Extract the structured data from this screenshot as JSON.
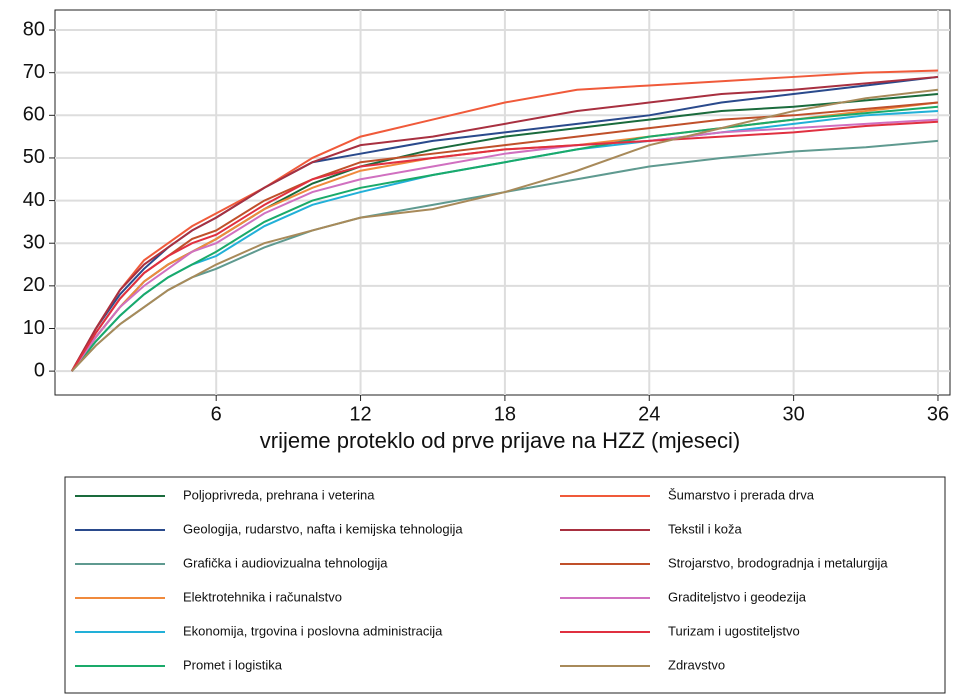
{
  "chart_data": {
    "type": "line",
    "xlabel": "vrijeme proteklo od prve prijave na HZZ (mjeseci)",
    "x": [
      0,
      1,
      2,
      3,
      4,
      5,
      6,
      8,
      10,
      12,
      15,
      18,
      21,
      24,
      27,
      30,
      33,
      36
    ],
    "xlim": [
      -0.7,
      36.5
    ],
    "ylim": [
      -5.6,
      84.7
    ],
    "xticks": [
      6,
      12,
      18,
      24,
      30,
      36
    ],
    "yticks": [
      0,
      10,
      20,
      30,
      40,
      50,
      60,
      70,
      80
    ],
    "grid": true,
    "series": [
      {
        "name": "Poljoprivreda, prehrana i veterina",
        "color": "#1a6b3c",
        "values": [
          0,
          8,
          15,
          21,
          25,
          28,
          31,
          38,
          44,
          48,
          52,
          55,
          57,
          59,
          61,
          62,
          63.5,
          65
        ]
      },
      {
        "name": "Geologija, rudarstvo, nafta i kemijska tehnologija",
        "color": "#2a4a8c",
        "values": [
          0,
          10,
          18,
          24,
          29,
          33,
          36,
          43,
          49,
          51,
          54,
          56,
          58,
          60,
          63,
          65,
          67,
          69
        ]
      },
      {
        "name": "Grafička i audiovizualna tehnologija",
        "color": "#5f9a90",
        "values": [
          0,
          6,
          11,
          15,
          19,
          22,
          24,
          29,
          33,
          36,
          39,
          42,
          45,
          48,
          50,
          51.5,
          52.5,
          54
        ]
      },
      {
        "name": "Elektrotehnika i računalstvo",
        "color": "#f08a3c",
        "values": [
          0,
          8,
          15,
          21,
          25,
          28,
          31,
          38,
          43,
          47,
          50,
          52,
          53,
          55,
          57,
          59,
          61,
          63
        ]
      },
      {
        "name": "Ekonomija, trgovina i poslovna administracija",
        "color": "#22b0d8",
        "values": [
          0,
          7,
          13,
          18,
          22,
          25,
          27,
          34,
          39,
          42,
          46,
          49,
          52,
          54,
          56,
          58,
          60,
          61
        ]
      },
      {
        "name": "Promet i logistika",
        "color": "#1aaa6a",
        "values": [
          0,
          7,
          13,
          18,
          22,
          25,
          28,
          35,
          40,
          43,
          46,
          49,
          52,
          55,
          57,
          59,
          60.5,
          62
        ]
      },
      {
        "name": "Šumarstvo i prerada drva",
        "color": "#f05a3a",
        "values": [
          0,
          10,
          19,
          26,
          30,
          34,
          37,
          43,
          50,
          55,
          59,
          63,
          66,
          67,
          68,
          69,
          70,
          70.5
        ]
      },
      {
        "name": "Tekstil i koža",
        "color": "#a83040",
        "values": [
          0,
          10,
          19,
          25,
          29,
          33,
          36,
          43,
          49,
          53,
          55,
          58,
          61,
          63,
          65,
          66,
          67.5,
          69
        ]
      },
      {
        "name": "Strojarstvo, brodogradnja i metalurgija",
        "color": "#c0502a",
        "values": [
          0,
          9,
          17,
          23,
          27,
          31,
          33,
          40,
          45,
          49,
          51,
          53,
          55,
          57,
          59,
          60,
          61.5,
          63
        ]
      },
      {
        "name": "Graditeljstvo i geodezija",
        "color": "#d070c0",
        "values": [
          0,
          8,
          15,
          20,
          24,
          28,
          30,
          37,
          42,
          45,
          48,
          51,
          53,
          54,
          56,
          57,
          58,
          59
        ]
      },
      {
        "name": "Turizam i ugostiteljstvo",
        "color": "#e03040",
        "values": [
          0,
          9,
          17,
          23,
          27,
          30,
          32,
          39,
          45,
          48,
          50,
          52,
          53,
          54,
          55,
          56,
          57.5,
          58.5
        ]
      },
      {
        "name": "Zdravstvo",
        "color": "#a88a5a",
        "values": [
          0,
          6,
          11,
          15,
          19,
          22,
          25,
          30,
          33,
          36,
          38,
          42,
          47,
          53,
          57,
          61,
          64,
          66
        ]
      }
    ]
  }
}
